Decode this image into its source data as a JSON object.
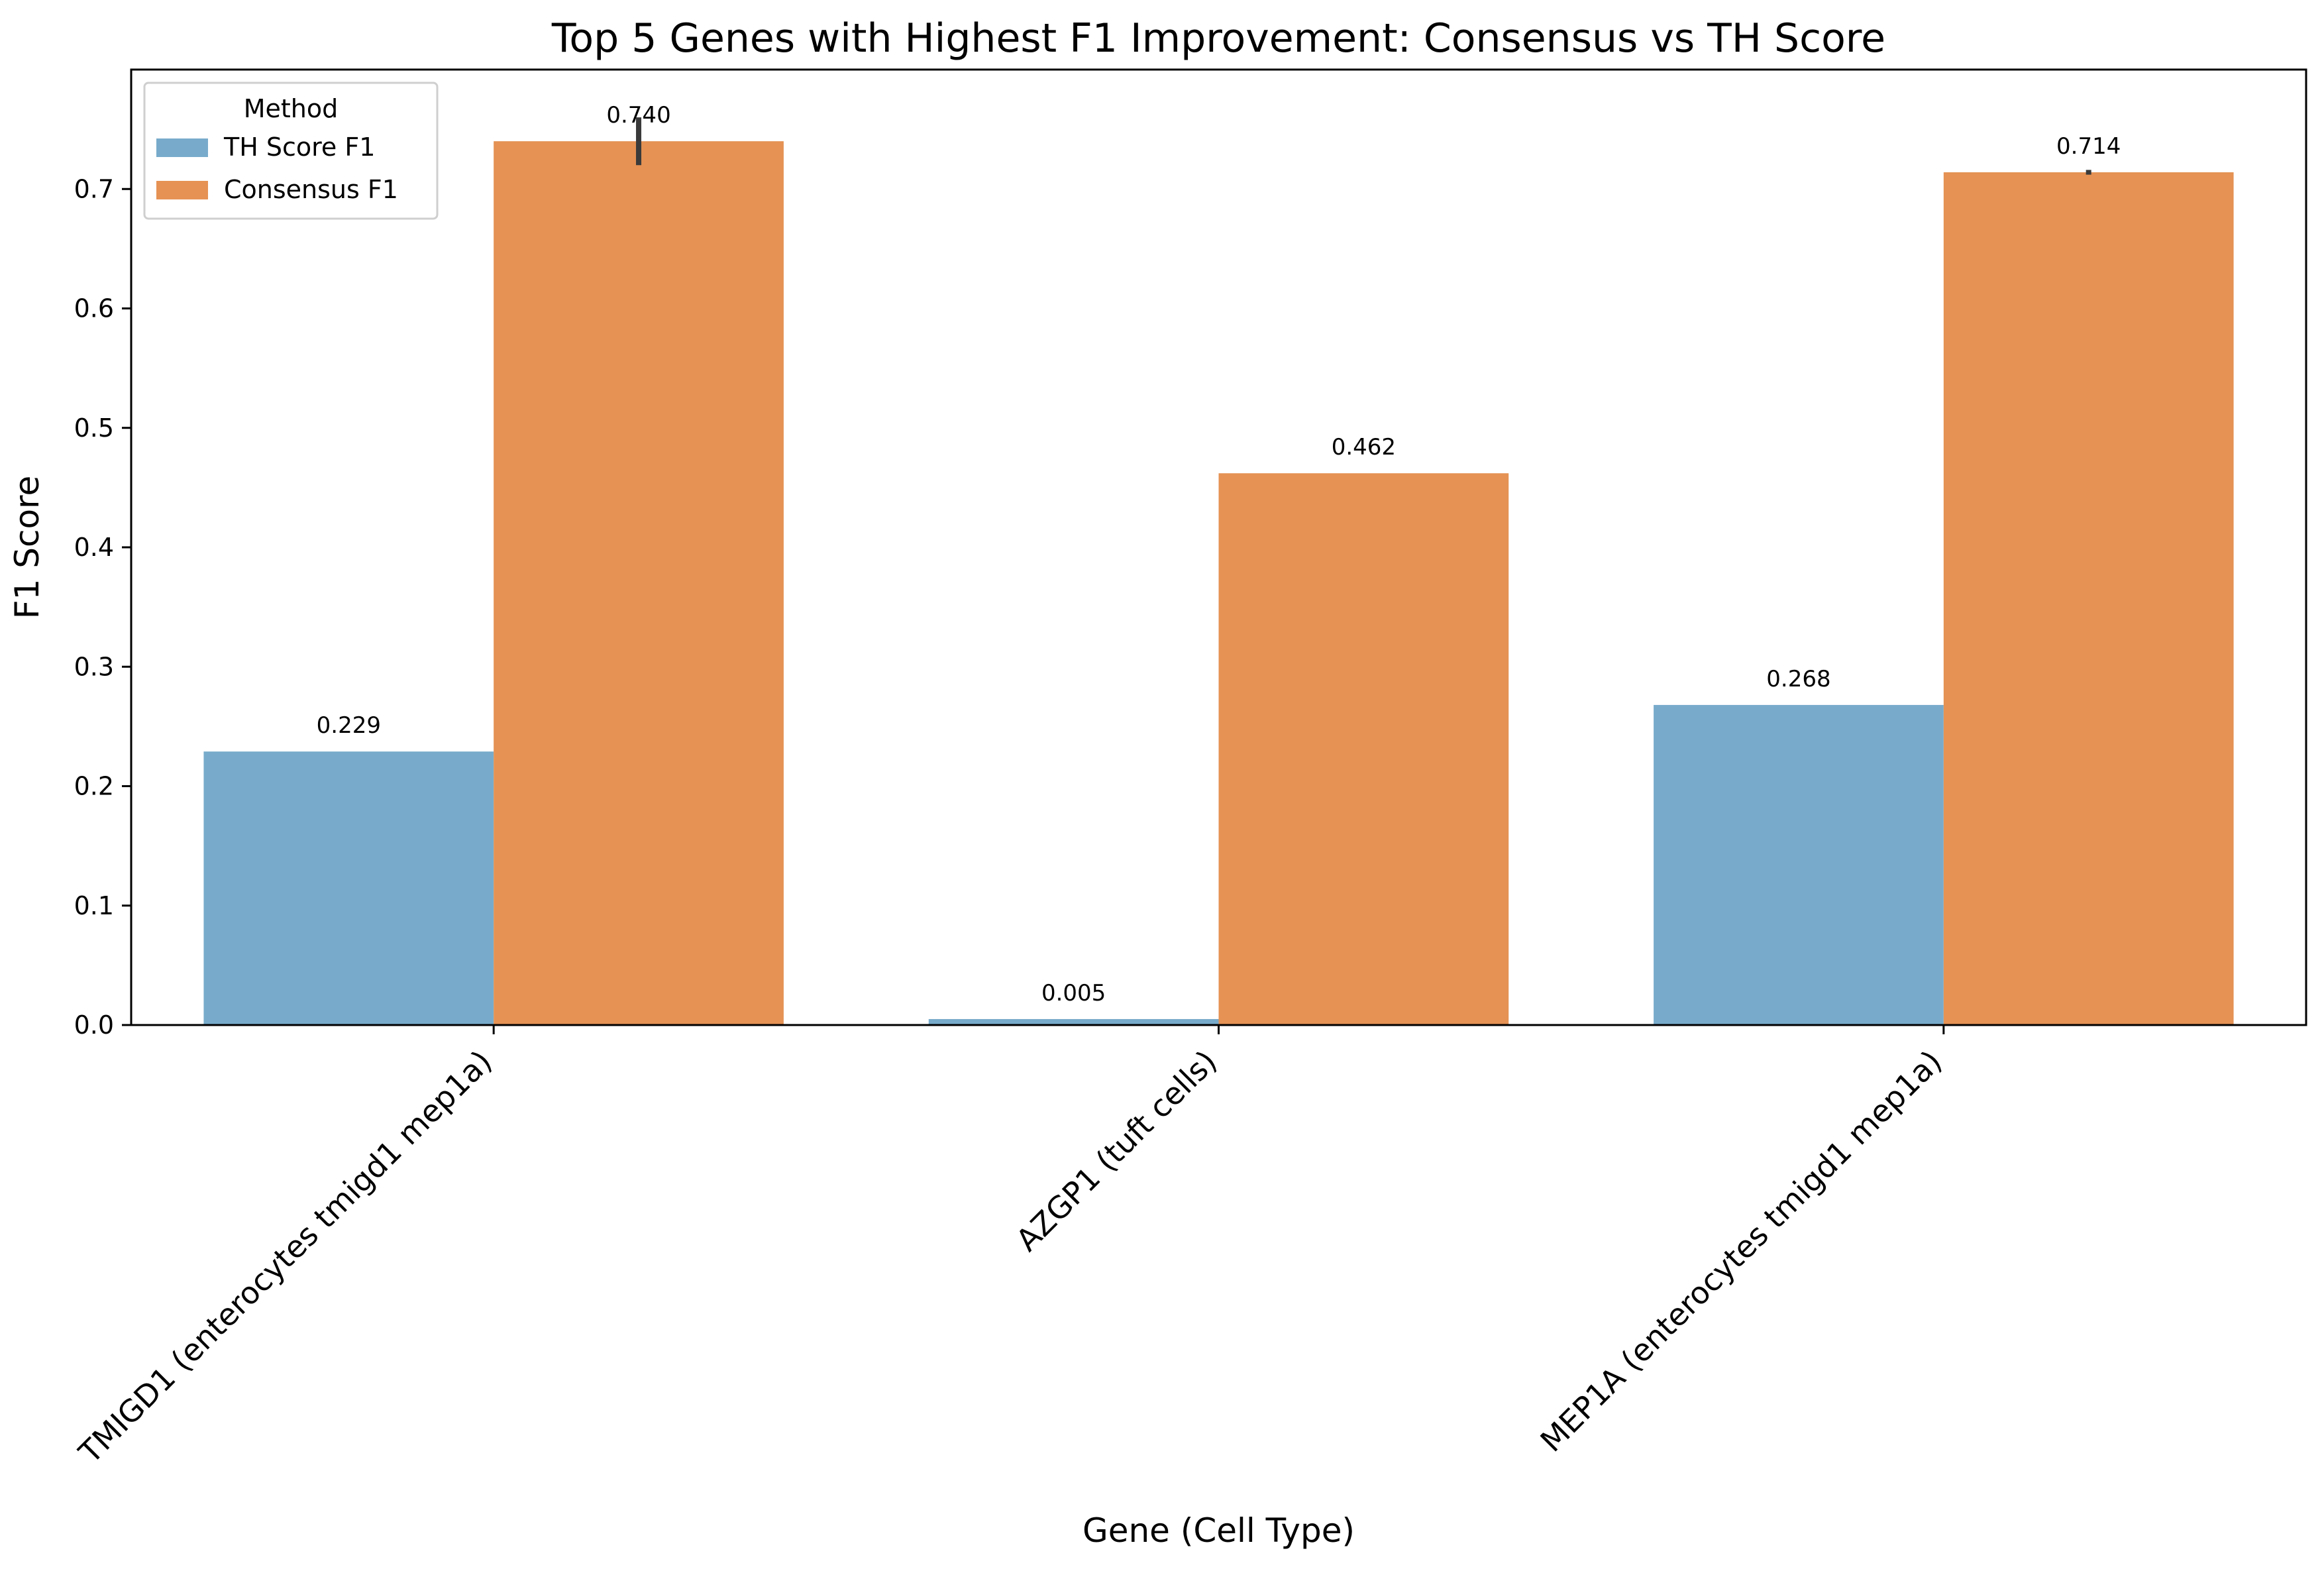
{
  "chart_data": {
    "type": "bar",
    "title": "Top 5 Genes with Highest F1 Improvement: Consensus vs TH Score",
    "xlabel": "Gene (Cell Type)",
    "ylabel": "F1 Score",
    "ylim": [
      0,
      0.8
    ],
    "yticks": [
      0.0,
      0.1,
      0.2,
      0.3,
      0.4,
      0.5,
      0.6,
      0.7
    ],
    "yticklabels": [
      "0.0",
      "0.1",
      "0.2",
      "0.3",
      "0.4",
      "0.5",
      "0.6",
      "0.7"
    ],
    "categories": [
      "TMIGD1 (enterocytes tmigd1 mep1a)",
      "AZGP1 (tuft cells)",
      "MEP1A (enterocytes tmigd1 mep1a)"
    ],
    "series": [
      {
        "name": "TH Score F1",
        "color": "#78abcb",
        "values": [
          0.229,
          0.005,
          0.268
        ],
        "labels": [
          "0.229",
          "0.005",
          "0.268"
        ]
      },
      {
        "name": "Consensus F1",
        "color": "#e59254",
        "values": [
          0.74,
          0.462,
          0.714
        ],
        "labels": [
          "0.740",
          "0.462",
          "0.714"
        ],
        "error_bars": [
          [
            0.72,
            0.76
          ],
          null,
          [
            0.712,
            0.716
          ]
        ]
      }
    ],
    "legend": {
      "title": "Method",
      "position": "top-left"
    },
    "grid": false
  }
}
